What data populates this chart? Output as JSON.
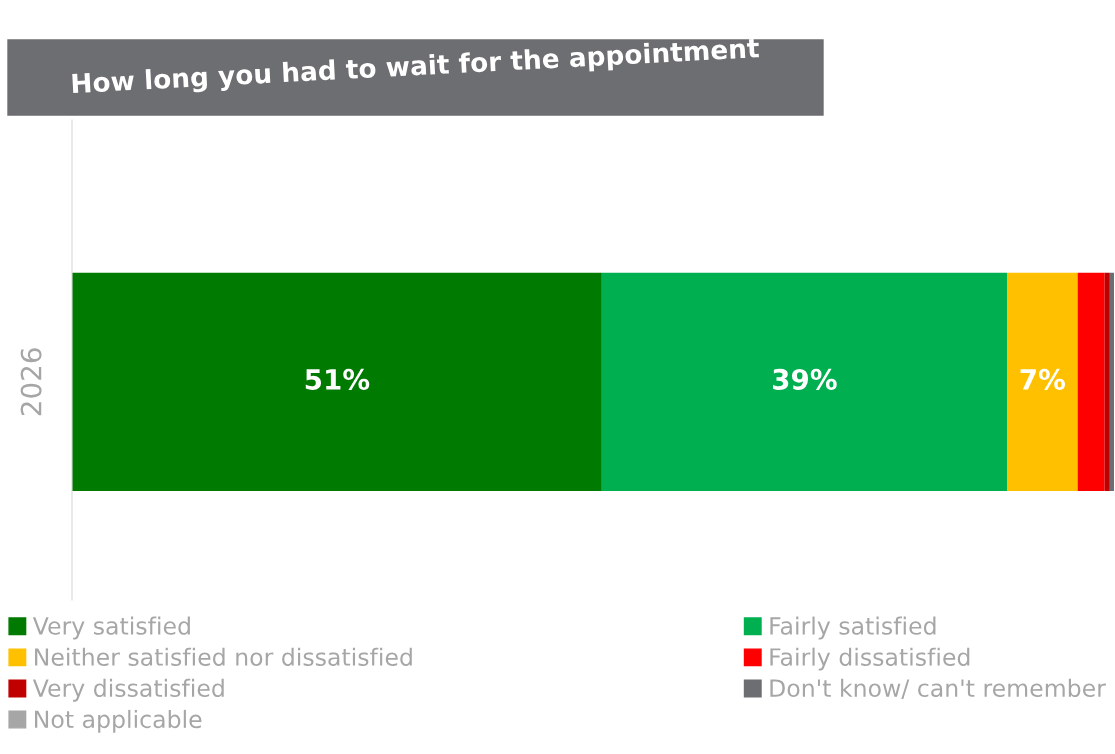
{
  "chart_data": {
    "type": "bar",
    "orientation": "horizontal",
    "stacked": true,
    "title": "How long you had to wait for the appointment",
    "categories": [
      "2026"
    ],
    "xlim": [
      0,
      100.3
    ],
    "legend": "bottom",
    "grid": false,
    "series": [
      {
        "name": "Very satisfied",
        "color": "#007a00",
        "values": [
          51
        ],
        "value_labels": [
          "51%"
        ]
      },
      {
        "name": "Fairly satisfied",
        "color": "#00b050",
        "values": [
          39
        ],
        "value_labels": [
          "39%"
        ]
      },
      {
        "name": "Neither satisfied nor dissatisfied",
        "color": "#ffc000",
        "values": [
          6.8
        ],
        "value_labels": [
          "7%"
        ]
      },
      {
        "name": "Fairly dissatisfied",
        "color": "#ff0000",
        "values": [
          2.6
        ],
        "value_labels": [
          null
        ]
      },
      {
        "name": "Very dissatisfied",
        "color": "#c00000",
        "values": [
          0.5
        ],
        "value_labels": [
          null
        ]
      },
      {
        "name": "Don't know/ can't remember",
        "color": "#6d6e71",
        "values": [
          0.4
        ],
        "value_labels": [
          null
        ]
      },
      {
        "name": "Not applicable",
        "color": "#a6a6a6",
        "values": [
          0
        ],
        "value_labels": [
          null
        ]
      }
    ]
  }
}
